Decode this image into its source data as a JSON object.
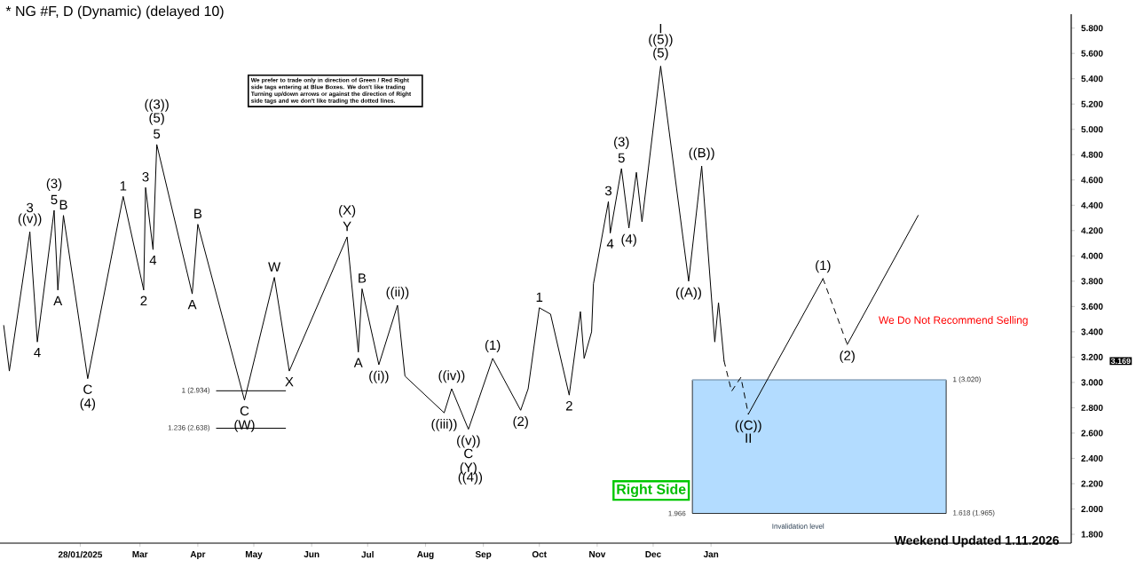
{
  "chart_data": {
    "type": "line",
    "title": "* NG #F, D (Dynamic) (delayed 10)",
    "xlim": [
      "2024-12-16",
      "2026-07-13"
    ],
    "ylim": [
      1.73,
      5.91
    ],
    "xticks": [
      {
        "value": "2025-01-28",
        "label": "28/01/2025"
      },
      {
        "value": "2025-03-01",
        "label": "Mar"
      },
      {
        "value": "2025-04-01",
        "label": "Apr"
      },
      {
        "value": "2025-05-01",
        "label": "May"
      },
      {
        "value": "2025-06-01",
        "label": "Jun"
      },
      {
        "value": "2025-07-01",
        "label": "Jul"
      },
      {
        "value": "2025-08-01",
        "label": "Aug"
      },
      {
        "value": "2025-09-01",
        "label": "Sep"
      },
      {
        "value": "2025-10-01",
        "label": "Oct"
      },
      {
        "value": "2025-11-01",
        "label": "Nov"
      },
      {
        "value": "2025-12-01",
        "label": "Dec"
      },
      {
        "value": "2026-01-01",
        "label": "Jan"
      }
    ],
    "yticks": [
      {
        "value": 1.8,
        "label": "1.800"
      },
      {
        "value": 2.0,
        "label": "2.000"
      },
      {
        "value": 2.2,
        "label": "2.200"
      },
      {
        "value": 2.4,
        "label": "2.400"
      },
      {
        "value": 2.6,
        "label": "2.600"
      },
      {
        "value": 2.8,
        "label": "2.800"
      },
      {
        "value": 3.0,
        "label": "3.000"
      },
      {
        "value": 3.2,
        "label": "3.200"
      },
      {
        "value": 3.4,
        "label": "3.400"
      },
      {
        "value": 3.6,
        "label": "3.600"
      },
      {
        "value": 3.8,
        "label": "3.800"
      },
      {
        "value": 4.0,
        "label": "4.000"
      },
      {
        "value": 4.2,
        "label": "4.200"
      },
      {
        "value": 4.4,
        "label": "4.400"
      },
      {
        "value": 4.6,
        "label": "4.600"
      },
      {
        "value": 4.8,
        "label": "4.800"
      },
      {
        "value": 5.0,
        "label": "5.000"
      },
      {
        "value": 5.2,
        "label": "5.200"
      },
      {
        "value": 5.4,
        "label": "5.400"
      },
      {
        "value": 5.6,
        "label": "5.600"
      },
      {
        "value": 5.8,
        "label": "5.800"
      }
    ],
    "series": [
      {
        "color": "#b3dcff",
        "x": [
          "2025-12-22",
          "2026-05-07"
        ],
        "lower": [
          1.965,
          1.965
        ],
        "upper": [
          3.02,
          3.02
        ],
        "values": [
          3.02,
          3.02
        ]
      },
      {
        "color": "#000000",
        "x": [
          "2024-12-18",
          "2024-12-21",
          "2025-01-01",
          "2025-01-05",
          "2025-01-14",
          "2025-01-16",
          "2025-01-19",
          "2025-02-01",
          "2025-02-20",
          "2025-03-03",
          "2025-03-04",
          "2025-03-08",
          "2025-03-10",
          "2025-03-29",
          "2025-04-01",
          "2025-04-26",
          "2025-05-12",
          "2025-05-20",
          "2025-06-20",
          "2025-06-26",
          "2025-06-28",
          "2025-07-07",
          "2025-07-17",
          "2025-07-21",
          "2025-08-11",
          "2025-08-15",
          "2025-08-24",
          "2025-09-06",
          "2025-09-21",
          "2025-09-25",
          "2025-10-01",
          "2025-10-07",
          "2025-10-17",
          "2025-10-23",
          "2025-10-25",
          "2025-10-29",
          "2025-10-30",
          "2025-11-07",
          "2025-11-08",
          "2025-11-14",
          "2025-11-18",
          "2025-11-22",
          "2025-11-25",
          "2025-12-05",
          "2025-12-20",
          "2025-12-27",
          "2026-01-03",
          "2026-01-05",
          "2026-01-08"
        ],
        "values": [
          3.45,
          3.09,
          4.19,
          3.32,
          4.36,
          3.73,
          4.32,
          3.03,
          4.47,
          3.73,
          4.54,
          4.05,
          4.88,
          3.7,
          4.25,
          2.86,
          3.83,
          3.09,
          4.15,
          3.24,
          3.74,
          3.14,
          3.61,
          3.05,
          2.76,
          2.95,
          2.63,
          3.19,
          2.78,
          2.95,
          3.59,
          3.54,
          2.9,
          3.56,
          3.19,
          3.4,
          3.78,
          4.43,
          4.18,
          4.69,
          4.22,
          4.66,
          4.27,
          5.5,
          3.8,
          4.71,
          3.32,
          3.63,
          3.169
        ]
      },
      {
        "color": "#000000",
        "line_style": "dashed",
        "x": [
          "2026-01-08",
          "2026-01-12",
          "2026-01-17",
          "2026-01-21"
        ],
        "values": [
          3.169,
          2.93,
          3.04,
          2.75
        ]
      },
      {
        "color": "#000000",
        "line_style": "solid",
        "x": [
          "2026-01-21",
          "2026-03-02"
        ],
        "values": [
          2.75,
          3.82
        ]
      },
      {
        "color": "#000000",
        "line_style": "dashed",
        "x": [
          "2026-03-02",
          "2026-03-15"
        ],
        "values": [
          3.82,
          3.3
        ]
      },
      {
        "color": "#000000",
        "line_style": "solid",
        "x": [
          "2026-03-15",
          "2026-04-22"
        ],
        "values": [
          3.3,
          4.32
        ]
      },
      {
        "color": "#000000",
        "x": [
          "2025-04-11",
          "2025-05-18"
        ],
        "values": [
          2.934,
          2.934
        ]
      },
      {
        "color": "#000000",
        "x": [
          "2025-04-11",
          "2025-05-18"
        ],
        "values": [
          2.638,
          2.638
        ]
      }
    ],
    "annotations": [
      "We prefer to trade only in direction of Green / Red Right side tags entering at Blue Boxes. We don't like trading Turning up/down arrows or against the direction of Right side tags and we don't like trading the dotted lines.",
      "Weekend Updated 1.11.2026",
      "We Do Not Recommend Selling",
      "Right Side",
      "3.169",
      "Invalidation level",
      {
        "text": "1 (2.934)",
        "x": "2025-04-11",
        "y": 2.934
      },
      {
        "text": "1.236 (2.638)",
        "x": "2025-04-11",
        "y": 2.638
      },
      {
        "text": "1 (3.020)",
        "x": "2026-05-07",
        "y": 3.02
      },
      {
        "text": "1.618 (1.965)",
        "x": "2026-05-07",
        "y": 1.965
      },
      {
        "text": "1.966",
        "x": "2025-12-22",
        "y": 1.965
      },
      {
        "text": "((v))",
        "x": "2025-01-01",
        "y": 4.19
      },
      {
        "text": "3",
        "x": "2025-01-01",
        "y": 4.19
      },
      {
        "text": "4",
        "x": "2025-01-05",
        "y": 3.32
      },
      {
        "text": "5",
        "x": "2025-01-14",
        "y": 4.36
      },
      {
        "text": "(3)",
        "x": "2025-01-14",
        "y": 4.36
      },
      {
        "text": "A",
        "x": "2025-01-16",
        "y": 3.73
      },
      {
        "text": "B",
        "x": "2025-01-19",
        "y": 4.32
      },
      {
        "text": "C",
        "x": "2025-02-01",
        "y": 3.03
      },
      {
        "text": "(4)",
        "x": "2025-02-01",
        "y": 3.03
      },
      {
        "text": "1",
        "x": "2025-02-20",
        "y": 4.47
      },
      {
        "text": "2",
        "x": "2025-03-03",
        "y": 3.73
      },
      {
        "text": "3",
        "x": "2025-03-04",
        "y": 4.54
      },
      {
        "text": "4",
        "x": "2025-03-08",
        "y": 4.05
      },
      {
        "text": "5",
        "x": "2025-03-10",
        "y": 4.88
      },
      {
        "text": "(5)",
        "x": "2025-03-10",
        "y": 4.88
      },
      {
        "text": "((3))",
        "x": "2025-03-10",
        "y": 4.88
      },
      {
        "text": "A",
        "x": "2025-03-29",
        "y": 3.7
      },
      {
        "text": "B",
        "x": "2025-04-01",
        "y": 4.25
      },
      {
        "text": "C",
        "x": "2025-04-26",
        "y": 2.86
      },
      {
        "text": "(W)",
        "x": "2025-04-26",
        "y": 2.86
      },
      {
        "text": "W",
        "x": "2025-05-12",
        "y": 3.83
      },
      {
        "text": "X",
        "x": "2025-05-20",
        "y": 3.09
      },
      {
        "text": "Y",
        "x": "2025-06-20",
        "y": 4.15
      },
      {
        "text": "(X)",
        "x": "2025-06-20",
        "y": 4.15
      },
      {
        "text": "A",
        "x": "2025-06-26",
        "y": 3.24
      },
      {
        "text": "B",
        "x": "2025-06-28",
        "y": 3.74
      },
      {
        "text": "((i))",
        "x": "2025-07-07",
        "y": 3.14
      },
      {
        "text": "((ii))",
        "x": "2025-07-17",
        "y": 3.61
      },
      {
        "text": "((iii))",
        "x": "2025-08-11",
        "y": 2.76
      },
      {
        "text": "((iv))",
        "x": "2025-08-15",
        "y": 2.95
      },
      {
        "text": "((v))",
        "x": "2025-08-24",
        "y": 2.63
      },
      {
        "text": "C",
        "x": "2025-08-24",
        "y": 2.63
      },
      {
        "text": "(Y)",
        "x": "2025-08-24",
        "y": 2.63
      },
      "((4))",
      {
        "text": "(1)",
        "x": "2025-09-06",
        "y": 3.19
      },
      {
        "text": "(2)",
        "x": "2025-09-21",
        "y": 2.78
      },
      {
        "text": "1",
        "x": "2025-10-01",
        "y": 3.59
      },
      {
        "text": "2",
        "x": "2025-10-17",
        "y": 2.9
      },
      {
        "text": "3",
        "x": "2025-11-07",
        "y": 4.43
      },
      {
        "text": "4",
        "x": "2025-11-08",
        "y": 4.18
      },
      {
        "text": "5",
        "x": "2025-11-14",
        "y": 4.69
      },
      {
        "text": "(3)",
        "x": "2025-11-14",
        "y": 4.69
      },
      {
        "text": "(4)",
        "x": "2025-11-18",
        "y": 4.22
      },
      {
        "text": "(5)",
        "x": "2025-12-05",
        "y": 5.5
      },
      {
        "text": "((5))",
        "x": "2025-12-05",
        "y": 5.5
      },
      {
        "text": "I",
        "x": "2025-12-05",
        "y": 5.5
      },
      {
        "text": "((A))",
        "x": "2025-12-20",
        "y": 3.8
      },
      {
        "text": "((B))",
        "x": "2025-12-27",
        "y": 4.71
      },
      {
        "text": "((C))",
        "x": "2026-01-21",
        "y": 2.75
      },
      {
        "text": "II",
        "x": "2026-01-21",
        "y": 2.75
      },
      {
        "text": "(1)",
        "x": "2026-03-02",
        "y": 3.82
      },
      {
        "text": "(2)",
        "x": "2026-03-15",
        "y": 3.3
      }
    ]
  }
}
